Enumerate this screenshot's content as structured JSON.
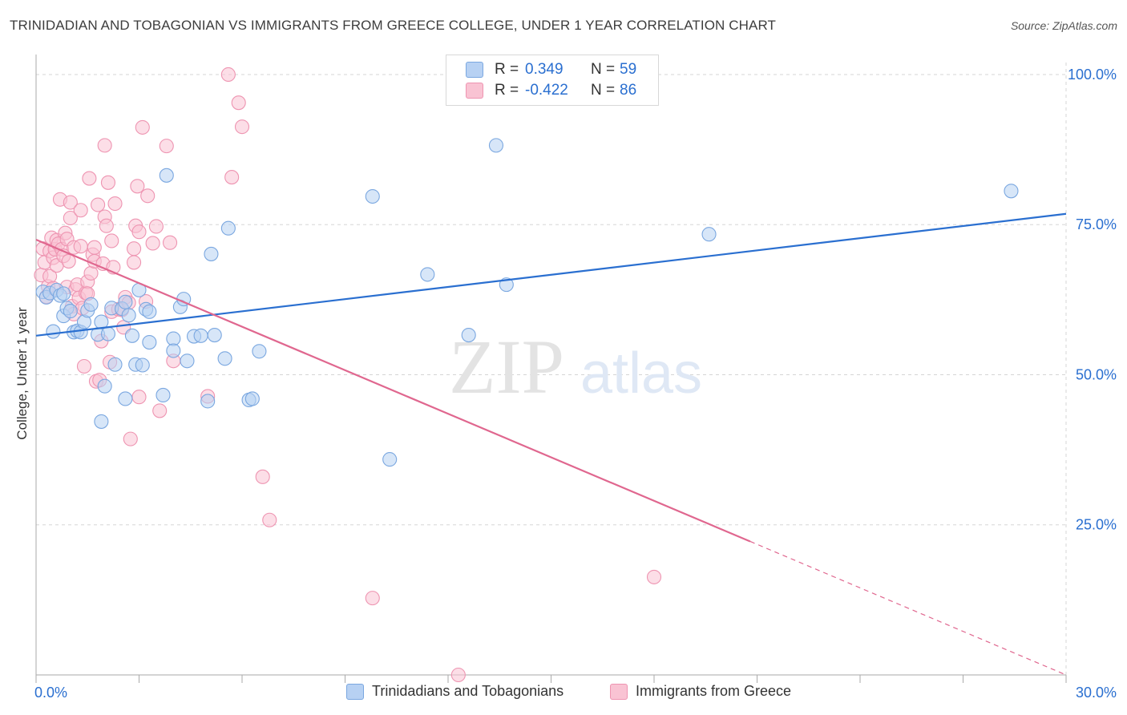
{
  "title": "TRINIDADIAN AND TOBAGONIAN VS IMMIGRANTS FROM GREECE COLLEGE, UNDER 1 YEAR CORRELATION CHART",
  "source": "Source: ZipAtlas.com",
  "watermark": {
    "zip": "ZIP",
    "atlas": "atlas"
  },
  "legend": {
    "r_label": "R =",
    "n_label": "N =",
    "series1": {
      "r": "0.349",
      "n": "59"
    },
    "series2": {
      "r": "-0.422",
      "n": "86"
    }
  },
  "bottom_legend": {
    "series1": "Trinidadians and Tobagonians",
    "series2": "Immigrants from Greece"
  },
  "colors": {
    "blue_fill": "#b7d1f3",
    "blue_stroke": "#7aa7e0",
    "blue_line": "#2a6fd0",
    "pink_fill": "#f9c3d3",
    "pink_stroke": "#ee94b1",
    "pink_line": "#e0678f",
    "tick_label": "#2a6fd0",
    "grid": "#d5d5d5"
  },
  "chart_data": {
    "type": "scatter",
    "title": "TRINIDADIAN AND TOBAGONIAN VS IMMIGRANTS FROM GREECE COLLEGE, UNDER 1 YEAR CORRELATION CHART",
    "xlabel": "",
    "ylabel": "College, Under 1 year",
    "xlim": [
      0,
      30
    ],
    "ylim": [
      0,
      102
    ],
    "x_tick_labels": [
      "0.0%",
      "30.0%"
    ],
    "y_ticks": [
      25,
      50,
      75,
      100
    ],
    "y_tick_labels": [
      "25.0%",
      "50.0%",
      "75.0%",
      "100.0%"
    ],
    "grid": true,
    "legend_position": "top-center",
    "series": [
      {
        "name": "Trinidadians and Tobagonians",
        "color": "#7aa7e0",
        "r": 0.349,
        "n": 59,
        "trend": {
          "x": [
            0,
            30
          ],
          "y": [
            56.5,
            76.8
          ],
          "dashed_from": null
        },
        "points": [
          [
            0.2,
            63.8
          ],
          [
            0.3,
            62.9
          ],
          [
            0.4,
            63.6
          ],
          [
            0.5,
            57.2
          ],
          [
            0.6,
            64.1
          ],
          [
            0.7,
            63.2
          ],
          [
            0.8,
            63.5
          ],
          [
            0.8,
            59.8
          ],
          [
            0.9,
            61.1
          ],
          [
            1.0,
            60.6
          ],
          [
            1.1,
            57.1
          ],
          [
            1.2,
            57.3
          ],
          [
            1.3,
            57.1
          ],
          [
            1.4,
            58.8
          ],
          [
            1.5,
            60.7
          ],
          [
            1.6,
            61.7
          ],
          [
            1.8,
            56.7
          ],
          [
            1.9,
            42.2
          ],
          [
            1.9,
            58.8
          ],
          [
            2.0,
            48.1
          ],
          [
            2.1,
            56.8
          ],
          [
            2.2,
            61.1
          ],
          [
            2.3,
            51.7
          ],
          [
            2.5,
            61.0
          ],
          [
            2.6,
            62.1
          ],
          [
            2.6,
            46.0
          ],
          [
            2.7,
            59.9
          ],
          [
            2.8,
            56.5
          ],
          [
            2.9,
            51.7
          ],
          [
            3.0,
            64.1
          ],
          [
            3.1,
            51.6
          ],
          [
            3.2,
            60.9
          ],
          [
            3.3,
            60.5
          ],
          [
            3.3,
            55.4
          ],
          [
            3.8,
            83.2
          ],
          [
            3.7,
            46.6
          ],
          [
            4.0,
            56.0
          ],
          [
            4.0,
            54.0
          ],
          [
            4.2,
            61.3
          ],
          [
            4.3,
            62.6
          ],
          [
            4.4,
            52.3
          ],
          [
            4.6,
            56.4
          ],
          [
            4.8,
            56.5
          ],
          [
            5.0,
            45.6
          ],
          [
            5.1,
            70.1
          ],
          [
            5.2,
            56.6
          ],
          [
            5.5,
            52.7
          ],
          [
            5.6,
            74.4
          ],
          [
            6.2,
            45.8
          ],
          [
            6.3,
            46.0
          ],
          [
            6.5,
            53.9
          ],
          [
            9.8,
            79.7
          ],
          [
            10.3,
            35.9
          ],
          [
            11.4,
            66.7
          ],
          [
            12.6,
            56.6
          ],
          [
            13.4,
            88.2
          ],
          [
            13.7,
            65.0
          ],
          [
            19.6,
            73.4
          ],
          [
            28.4,
            80.6
          ]
        ]
      },
      {
        "name": "Immigrants from Greece",
        "color": "#ee94b1",
        "r": -0.422,
        "n": 86,
        "trend": {
          "x": [
            0,
            30
          ],
          "y": [
            72.5,
            0
          ],
          "dashed_from": 20.8
        },
        "points": [
          [
            0.15,
            66.6
          ],
          [
            0.2,
            71.0
          ],
          [
            0.25,
            68.7
          ],
          [
            0.3,
            63.0
          ],
          [
            0.35,
            64.7
          ],
          [
            0.4,
            70.6
          ],
          [
            0.4,
            66.4
          ],
          [
            0.45,
            72.8
          ],
          [
            0.5,
            69.5
          ],
          [
            0.55,
            70.9
          ],
          [
            0.6,
            68.2
          ],
          [
            0.6,
            72.4
          ],
          [
            0.65,
            71.8
          ],
          [
            0.7,
            79.2
          ],
          [
            0.75,
            70.9
          ],
          [
            0.8,
            69.8
          ],
          [
            0.85,
            73.6
          ],
          [
            0.9,
            64.6
          ],
          [
            0.9,
            72.6
          ],
          [
            0.95,
            68.9
          ],
          [
            1.0,
            76.1
          ],
          [
            1.0,
            78.7
          ],
          [
            1.05,
            61.4
          ],
          [
            1.1,
            60.1
          ],
          [
            1.1,
            71.2
          ],
          [
            1.15,
            64.2
          ],
          [
            1.2,
            65.0
          ],
          [
            1.25,
            62.8
          ],
          [
            1.3,
            71.4
          ],
          [
            1.3,
            77.4
          ],
          [
            1.35,
            61.1
          ],
          [
            1.4,
            51.4
          ],
          [
            1.45,
            63.6
          ],
          [
            1.5,
            65.5
          ],
          [
            1.5,
            63.5
          ],
          [
            1.55,
            82.7
          ],
          [
            1.6,
            66.9
          ],
          [
            1.65,
            70.0
          ],
          [
            1.7,
            71.2
          ],
          [
            1.7,
            68.9
          ],
          [
            1.75,
            48.9
          ],
          [
            1.8,
            78.3
          ],
          [
            1.85,
            49.1
          ],
          [
            1.9,
            55.6
          ],
          [
            1.95,
            68.5
          ],
          [
            2.0,
            88.2
          ],
          [
            2.0,
            76.3
          ],
          [
            2.05,
            74.8
          ],
          [
            2.1,
            82.0
          ],
          [
            2.15,
            52.1
          ],
          [
            2.2,
            72.3
          ],
          [
            2.2,
            60.5
          ],
          [
            2.25,
            67.9
          ],
          [
            2.3,
            78.5
          ],
          [
            2.4,
            60.9
          ],
          [
            2.5,
            60.8
          ],
          [
            2.55,
            57.9
          ],
          [
            2.6,
            62.9
          ],
          [
            2.7,
            62.0
          ],
          [
            2.75,
            39.3
          ],
          [
            2.85,
            71.0
          ],
          [
            2.85,
            68.7
          ],
          [
            2.9,
            74.8
          ],
          [
            2.95,
            81.4
          ],
          [
            3.0,
            73.8
          ],
          [
            3.0,
            46.3
          ],
          [
            3.1,
            91.2
          ],
          [
            3.2,
            62.2
          ],
          [
            3.25,
            79.8
          ],
          [
            3.4,
            71.9
          ],
          [
            3.5,
            74.7
          ],
          [
            3.6,
            44.0
          ],
          [
            3.8,
            88.1
          ],
          [
            3.9,
            72.0
          ],
          [
            4.0,
            52.3
          ],
          [
            5.0,
            46.4
          ],
          [
            5.6,
            100.0
          ],
          [
            5.7,
            82.9
          ],
          [
            5.9,
            95.3
          ],
          [
            6.0,
            91.3
          ],
          [
            6.6,
            33.0
          ],
          [
            6.8,
            25.8
          ],
          [
            9.8,
            12.8
          ],
          [
            12.3,
            0.0
          ],
          [
            18.0,
            16.3
          ],
          [
            0.5,
            64.4
          ]
        ]
      }
    ]
  }
}
